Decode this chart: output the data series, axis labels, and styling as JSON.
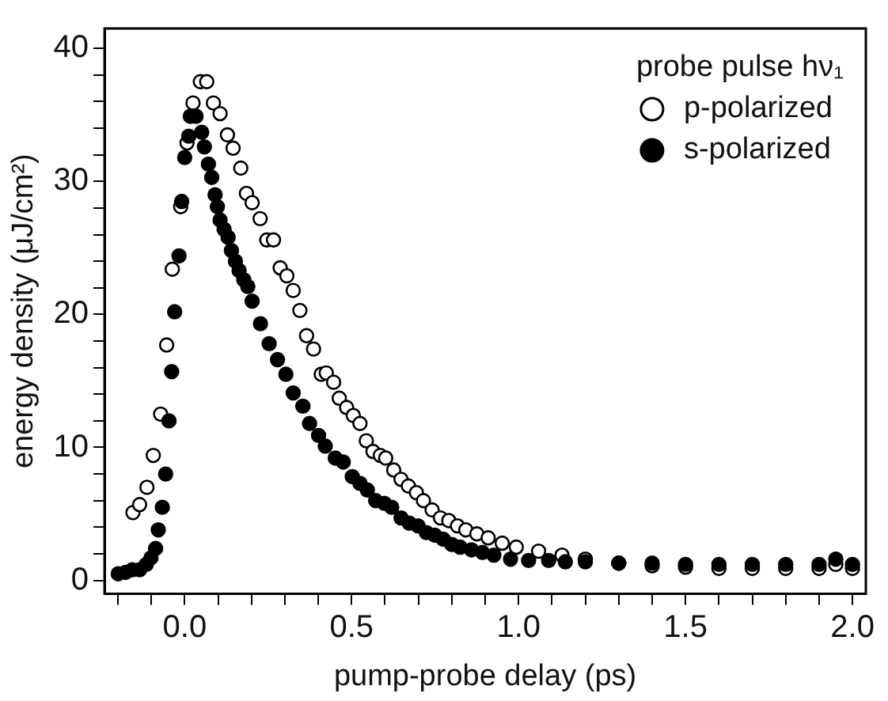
{
  "chart_data": {
    "type": "scatter",
    "xlabel": "pump-probe delay (ps)",
    "ylabel": "energy density (μJ/cm²)",
    "legend_title": "probe pulse hν₁",
    "legend": "top right",
    "marker": "circle",
    "grid": false,
    "xlim": [
      -0.24,
      2.04
    ],
    "ylim": [
      -1,
      41.5
    ],
    "xticks": [
      {
        "value": -0.2,
        "label": null
      },
      {
        "value": -0.1,
        "label": null
      },
      {
        "value": 0,
        "label": "0.0"
      },
      {
        "value": 0.1,
        "label": null
      },
      {
        "value": 0.2,
        "label": null
      },
      {
        "value": 0.3,
        "label": null
      },
      {
        "value": 0.4,
        "label": null
      },
      {
        "value": 0.5,
        "label": "0.5"
      },
      {
        "value": 0.6,
        "label": null
      },
      {
        "value": 0.7,
        "label": null
      },
      {
        "value": 0.8,
        "label": null
      },
      {
        "value": 0.9,
        "label": null
      },
      {
        "value": 1,
        "label": "1.0"
      },
      {
        "value": 1.1,
        "label": null
      },
      {
        "value": 1.2,
        "label": null
      },
      {
        "value": 1.3,
        "label": null
      },
      {
        "value": 1.4,
        "label": null
      },
      {
        "value": 1.5,
        "label": "1.5"
      },
      {
        "value": 1.6,
        "label": null
      },
      {
        "value": 1.7,
        "label": null
      },
      {
        "value": 1.8,
        "label": null
      },
      {
        "value": 1.9,
        "label": null
      },
      {
        "value": 2,
        "label": "2.0"
      }
    ],
    "yticks": [
      0,
      {
        "value": 2,
        "label": null
      },
      {
        "value": 4,
        "label": null
      },
      {
        "value": 6,
        "label": null
      },
      {
        "value": 8,
        "label": null
      },
      10,
      {
        "value": 12,
        "label": null
      },
      {
        "value": 14,
        "label": null
      },
      {
        "value": 16,
        "label": null
      },
      {
        "value": 18,
        "label": null
      },
      20,
      {
        "value": 22,
        "label": null
      },
      {
        "value": 24,
        "label": null
      },
      {
        "value": 26,
        "label": null
      },
      {
        "value": 28,
        "label": null
      },
      30,
      {
        "value": 32,
        "label": null
      },
      {
        "value": 34,
        "label": null
      },
      {
        "value": 36,
        "label": null
      },
      {
        "value": 38,
        "label": null
      },
      40
    ],
    "series": [
      {
        "name": "p-polarized",
        "color": "#ffffff",
        "x": [
          -0.155,
          -0.135,
          -0.113,
          -0.094,
          -0.072,
          -0.054,
          -0.037,
          -0.012,
          0.007,
          0.025,
          0.047,
          0.066,
          0.086,
          0.106,
          0.128,
          0.145,
          0.168,
          0.185,
          0.202,
          0.226,
          0.246,
          0.266,
          0.286,
          0.306,
          0.325,
          0.345,
          0.365,
          0.386,
          0.409,
          0.424,
          0.446,
          0.463,
          0.485,
          0.505,
          0.525,
          0.544,
          0.564,
          0.586,
          0.602,
          0.626,
          0.648,
          0.67,
          0.694,
          0.715,
          0.741,
          0.766,
          0.791,
          0.817,
          0.842,
          0.875,
          0.909,
          0.951,
          0.993,
          1.06,
          1.13,
          1.2,
          1.3,
          1.4,
          1.5,
          1.6,
          1.7,
          1.8,
          1.9,
          1.95,
          2.0
        ],
        "values": [
          5.1,
          5.7,
          7.0,
          9.4,
          12.5,
          17.7,
          23.4,
          28.1,
          32.9,
          35.9,
          37.5,
          37.5,
          35.9,
          35.1,
          33.5,
          32.5,
          31.0,
          29.1,
          28.4,
          27.2,
          25.6,
          25.6,
          23.5,
          22.9,
          21.8,
          20.3,
          18.4,
          17.4,
          15.5,
          15.6,
          14.9,
          13.7,
          13.0,
          12.4,
          11.8,
          10.5,
          9.7,
          9.4,
          9.2,
          8.3,
          7.6,
          7.1,
          6.6,
          6.0,
          5.3,
          4.7,
          4.5,
          4.1,
          3.8,
          3.5,
          3.2,
          2.8,
          2.5,
          2.2,
          1.9,
          1.6,
          1.3,
          1.1,
          1.0,
          0.9,
          0.9,
          0.9,
          0.9,
          1.2,
          0.9
        ]
      },
      {
        "name": "s-polarized",
        "color": "#000000",
        "x": [
          -0.199,
          -0.177,
          -0.157,
          -0.135,
          -0.115,
          -0.101,
          -0.087,
          -0.079,
          -0.067,
          -0.057,
          -0.047,
          -0.039,
          -0.03,
          -0.017,
          -0.009,
          0.0,
          0.012,
          0.017,
          0.034,
          0.051,
          0.059,
          0.071,
          0.081,
          0.091,
          0.098,
          0.106,
          0.118,
          0.13,
          0.14,
          0.152,
          0.163,
          0.177,
          0.189,
          0.202,
          0.227,
          0.253,
          0.278,
          0.303,
          0.325,
          0.354,
          0.374,
          0.401,
          0.421,
          0.451,
          0.475,
          0.502,
          0.525,
          0.547,
          0.572,
          0.598,
          0.62,
          0.648,
          0.673,
          0.699,
          0.724,
          0.749,
          0.774,
          0.8,
          0.825,
          0.859,
          0.892,
          0.926,
          0.976,
          1.03,
          1.09,
          1.14,
          1.2,
          1.3,
          1.4,
          1.5,
          1.6,
          1.7,
          1.8,
          1.9,
          1.95,
          2.0
        ],
        "values": [
          0.5,
          0.6,
          0.8,
          0.8,
          1.2,
          1.7,
          2.4,
          3.8,
          5.5,
          8.0,
          12.0,
          15.7,
          20.2,
          24.4,
          28.5,
          31.8,
          33.4,
          34.9,
          34.9,
          33.7,
          32.6,
          31.3,
          30.3,
          29.0,
          28.1,
          27.1,
          26.4,
          25.8,
          24.8,
          24.0,
          23.3,
          22.6,
          22.1,
          21.0,
          19.3,
          17.8,
          16.6,
          15.5,
          14.1,
          13.1,
          11.8,
          10.9,
          10.1,
          9.2,
          8.9,
          7.8,
          7.3,
          6.8,
          6.0,
          5.8,
          5.5,
          4.7,
          4.3,
          4.1,
          3.6,
          3.4,
          3.1,
          2.7,
          2.5,
          2.3,
          2.1,
          1.9,
          1.6,
          1.5,
          1.5,
          1.4,
          1.4,
          1.3,
          1.3,
          1.2,
          1.2,
          1.2,
          1.2,
          1.2,
          1.6,
          1.2
        ]
      }
    ]
  }
}
